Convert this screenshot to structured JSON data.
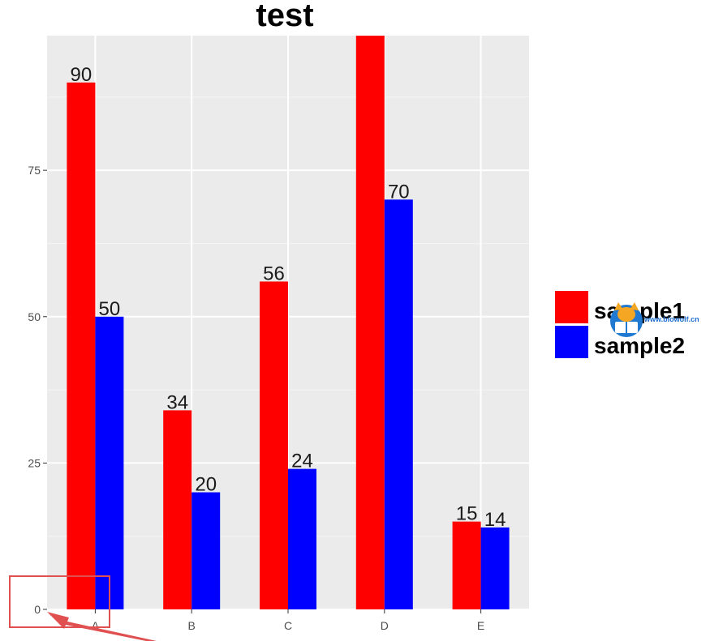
{
  "chart_data": {
    "type": "bar",
    "title": "test",
    "xlabel": "",
    "ylabel": "",
    "categories": [
      "A",
      "B",
      "C",
      "D",
      "E"
    ],
    "ylim": [
      0,
      98
    ],
    "yticks": [
      0,
      25,
      50,
      75
    ],
    "series": [
      {
        "name": "sample1",
        "color": "#ff0000",
        "values": [
          90,
          34,
          56,
          98,
          15
        ],
        "labels": [
          "90",
          "34",
          "56",
          "",
          "15"
        ]
      },
      {
        "name": "sample2",
        "color": "#0000ff",
        "values": [
          50,
          20,
          24,
          70,
          14
        ],
        "labels": [
          "50",
          "20",
          "24",
          "70",
          "14"
        ]
      }
    ],
    "grid": true,
    "panel_background": "#ebebeb",
    "legend_position": "right"
  },
  "watermark": {
    "site": "www.biowolf.cn",
    "icon": "wolf-book-logo-icon"
  },
  "annotation": {
    "colors": {
      "box": "#e05050",
      "arrow": "#e05050"
    }
  }
}
